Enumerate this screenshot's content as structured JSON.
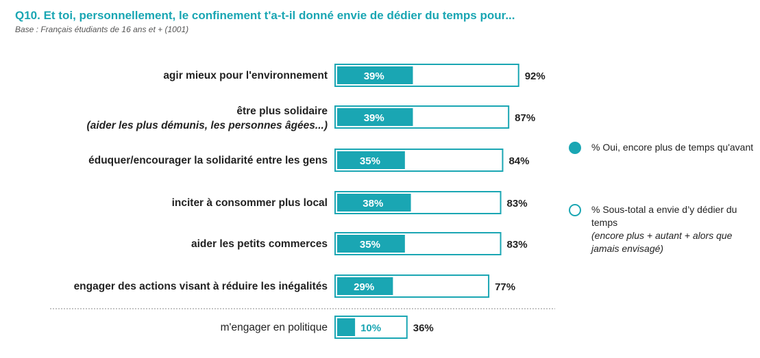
{
  "title": "Q10. Et toi, personnellement, le confinement t'a-t-il donné envie de dédier du temps pour...",
  "subtitle": "Base : Français étudiants de 16 ans et + (1001)",
  "colors": {
    "accent": "#1aa6b3",
    "text": "#222222",
    "outline": "#1aa6b3"
  },
  "legend": {
    "series1": "% Oui, encore plus de temps qu'avant",
    "series2": "% Sous-total a envie d’y dédier du temps",
    "series2_note": "(encore plus + autant + alors que jamais envisagé)"
  },
  "chart_data": {
    "type": "bar",
    "orientation": "horizontal",
    "categories": [
      "agir mieux pour l'environnement",
      "être plus solidaire",
      "éduquer/encourager la solidarité entre les gens",
      "inciter à consommer plus local",
      "aider les petits commerces",
      "engager des actions visant à réduire les inégalités",
      "m'engager en politique"
    ],
    "category_notes": [
      "",
      "(aider les plus démunis, les personnes âgées...)",
      "",
      "",
      "",
      "",
      ""
    ],
    "series": [
      {
        "name": "% Oui, encore plus de temps qu'avant",
        "values": [
          39,
          39,
          35,
          38,
          35,
          29,
          10
        ]
      },
      {
        "name": "% Sous-total a envie d’y dédier du temps",
        "values": [
          92,
          87,
          84,
          83,
          83,
          77,
          36
        ]
      }
    ],
    "value_labels_series1": [
      "39%",
      "39%",
      "35%",
      "38%",
      "35%",
      "29%",
      "10%"
    ],
    "value_labels_series2": [
      "92%",
      "87%",
      "84%",
      "83%",
      "83%",
      "77%",
      "36%"
    ],
    "separator_before_last": true,
    "xlim": [
      0,
      100
    ],
    "grid": false,
    "legend_position": "right"
  }
}
